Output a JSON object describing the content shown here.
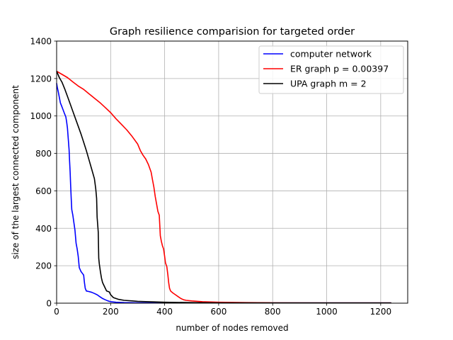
{
  "chart_data": {
    "type": "line",
    "title": "Graph resilience comparision for targeted order",
    "xlabel": "number of nodes removed",
    "ylabel": "size of the largest connected component",
    "xlim": [
      0,
      1300
    ],
    "ylim": [
      0,
      1400
    ],
    "xticks": [
      0,
      200,
      400,
      600,
      800,
      1000,
      1200
    ],
    "yticks": [
      0,
      200,
      400,
      600,
      800,
      1000,
      1200,
      1400
    ],
    "grid": true,
    "legend_position": "top-right",
    "series": [
      {
        "name": "computer network",
        "color": "#0000ff",
        "points": [
          [
            0,
            1175
          ],
          [
            3,
            1150
          ],
          [
            6,
            1130
          ],
          [
            10,
            1100
          ],
          [
            14,
            1070
          ],
          [
            18,
            1055
          ],
          [
            22,
            1040
          ],
          [
            26,
            1025
          ],
          [
            30,
            1010
          ],
          [
            34,
            995
          ],
          [
            37,
            970
          ],
          [
            40,
            935
          ],
          [
            43,
            880
          ],
          [
            46,
            820
          ],
          [
            48,
            760
          ],
          [
            50,
            700
          ],
          [
            52,
            630
          ],
          [
            54,
            560
          ],
          [
            56,
            500
          ],
          [
            60,
            470
          ],
          [
            64,
            430
          ],
          [
            68,
            390
          ],
          [
            72,
            320
          ],
          [
            76,
            290
          ],
          [
            80,
            250
          ],
          [
            84,
            190
          ],
          [
            90,
            170
          ],
          [
            95,
            160
          ],
          [
            100,
            150
          ],
          [
            103,
            110
          ],
          [
            106,
            80
          ],
          [
            110,
            65
          ],
          [
            120,
            62
          ],
          [
            130,
            58
          ],
          [
            140,
            52
          ],
          [
            150,
            45
          ],
          [
            160,
            35
          ],
          [
            170,
            25
          ],
          [
            180,
            18
          ],
          [
            190,
            12
          ],
          [
            200,
            8
          ],
          [
            220,
            5
          ],
          [
            250,
            3
          ],
          [
            300,
            2
          ],
          [
            400,
            1
          ],
          [
            600,
            1
          ],
          [
            800,
            1
          ],
          [
            1000,
            1
          ],
          [
            1200,
            1
          ],
          [
            1239,
            1
          ]
        ]
      },
      {
        "name": "ER graph p = 0.00397",
        "color": "#ff0000",
        "points": [
          [
            0,
            1239
          ],
          [
            20,
            1222
          ],
          [
            40,
            1205
          ],
          [
            60,
            1182
          ],
          [
            80,
            1160
          ],
          [
            100,
            1142
          ],
          [
            120,
            1118
          ],
          [
            140,
            1095
          ],
          [
            160,
            1072
          ],
          [
            180,
            1045
          ],
          [
            200,
            1018
          ],
          [
            220,
            985
          ],
          [
            240,
            955
          ],
          [
            260,
            925
          ],
          [
            280,
            890
          ],
          [
            300,
            850
          ],
          [
            310,
            815
          ],
          [
            320,
            790
          ],
          [
            330,
            770
          ],
          [
            340,
            740
          ],
          [
            350,
            700
          ],
          [
            355,
            660
          ],
          [
            360,
            620
          ],
          [
            365,
            570
          ],
          [
            370,
            530
          ],
          [
            375,
            490
          ],
          [
            380,
            470
          ],
          [
            382,
            420
          ],
          [
            384,
            360
          ],
          [
            388,
            330
          ],
          [
            392,
            305
          ],
          [
            396,
            290
          ],
          [
            400,
            250
          ],
          [
            403,
            215
          ],
          [
            408,
            195
          ],
          [
            412,
            150
          ],
          [
            415,
            110
          ],
          [
            418,
            80
          ],
          [
            422,
            65
          ],
          [
            430,
            55
          ],
          [
            440,
            45
          ],
          [
            450,
            35
          ],
          [
            460,
            25
          ],
          [
            470,
            18
          ],
          [
            480,
            15
          ],
          [
            500,
            12
          ],
          [
            540,
            8
          ],
          [
            600,
            5
          ],
          [
            700,
            3
          ],
          [
            800,
            2
          ],
          [
            1000,
            1
          ],
          [
            1239,
            1
          ]
        ]
      },
      {
        "name": "UPA graph m = 2",
        "color": "#000000",
        "points": [
          [
            0,
            1239
          ],
          [
            10,
            1205
          ],
          [
            20,
            1180
          ],
          [
            30,
            1145
          ],
          [
            40,
            1105
          ],
          [
            50,
            1065
          ],
          [
            60,
            1025
          ],
          [
            70,
            985
          ],
          [
            80,
            945
          ],
          [
            90,
            905
          ],
          [
            100,
            860
          ],
          [
            110,
            815
          ],
          [
            120,
            765
          ],
          [
            130,
            715
          ],
          [
            140,
            665
          ],
          [
            145,
            610
          ],
          [
            148,
            560
          ],
          [
            150,
            460
          ],
          [
            152,
            420
          ],
          [
            154,
            380
          ],
          [
            156,
            240
          ],
          [
            158,
            210
          ],
          [
            162,
            170
          ],
          [
            166,
            135
          ],
          [
            170,
            110
          ],
          [
            175,
            95
          ],
          [
            180,
            80
          ],
          [
            185,
            65
          ],
          [
            195,
            60
          ],
          [
            200,
            45
          ],
          [
            210,
            30
          ],
          [
            230,
            20
          ],
          [
            250,
            15
          ],
          [
            280,
            12
          ],
          [
            300,
            10
          ],
          [
            350,
            7
          ],
          [
            400,
            5
          ],
          [
            500,
            3
          ],
          [
            600,
            2
          ],
          [
            800,
            1
          ],
          [
            1000,
            1
          ],
          [
            1239,
            1
          ]
        ]
      }
    ]
  }
}
